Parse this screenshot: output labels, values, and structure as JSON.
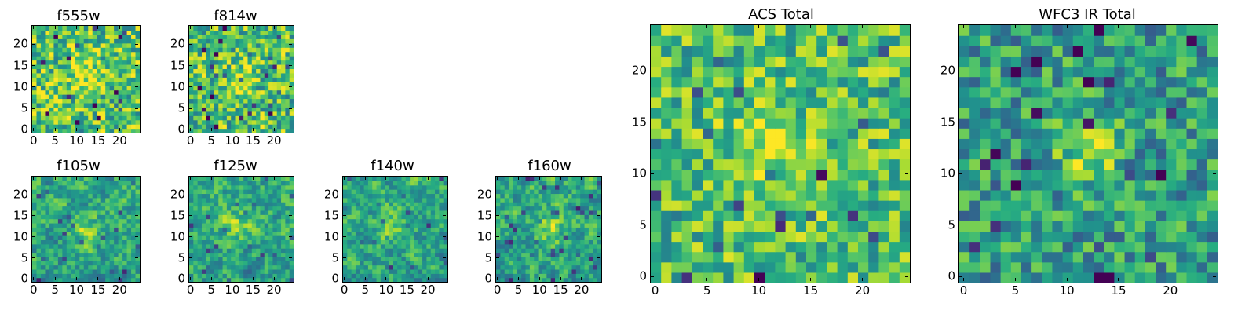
{
  "chart_data": [
    {
      "type": "heatmap",
      "title": "f555w",
      "seed": 11,
      "colormap": "viridis",
      "grid": [
        25,
        25
      ],
      "xlim": [
        -0.5,
        24.5
      ],
      "ylim": [
        -0.5,
        24.5
      ],
      "xticks": [
        0,
        5,
        10,
        15,
        20
      ],
      "yticks": [
        0,
        5,
        10,
        15,
        20
      ],
      "xtick_labels": [
        "0",
        "5",
        "10",
        "15",
        "20"
      ],
      "ytick_labels": [
        "0",
        "5",
        "10",
        "15",
        "20"
      ],
      "source": {
        "x": 12,
        "y": 13,
        "sigma": 2.5,
        "amp": 0.25
      },
      "background": 0.72,
      "noise": 0.3,
      "smooth": 0
    },
    {
      "type": "heatmap",
      "title": "f814w",
      "seed": 23,
      "colormap": "viridis",
      "grid": [
        25,
        25
      ],
      "xlim": [
        -0.5,
        24.5
      ],
      "ylim": [
        -0.5,
        24.5
      ],
      "xticks": [
        0,
        5,
        10,
        15,
        20
      ],
      "yticks": [
        0,
        5,
        10,
        15,
        20
      ],
      "xtick_labels": [
        "0",
        "5",
        "10",
        "15",
        "20"
      ],
      "ytick_labels": [
        "0",
        "5",
        "10",
        "15",
        "20"
      ],
      "source": {
        "x": 11,
        "y": 12,
        "sigma": 2.5,
        "amp": 0.22
      },
      "background": 0.7,
      "noise": 0.3,
      "smooth": 0
    },
    {
      "type": "heatmap",
      "title": "f105w",
      "seed": 37,
      "colormap": "viridis",
      "grid": [
        25,
        25
      ],
      "xlim": [
        -0.5,
        24.5
      ],
      "ylim": [
        -0.5,
        24.5
      ],
      "xticks": [
        0,
        5,
        10,
        15,
        20
      ],
      "yticks": [
        0,
        5,
        10,
        15,
        20
      ],
      "xtick_labels": [
        "0",
        "5",
        "10",
        "15",
        "20"
      ],
      "ytick_labels": [
        "0",
        "5",
        "10",
        "15",
        "20"
      ],
      "source": {
        "x": 12,
        "y": 11,
        "sigma": 2.5,
        "amp": 0.25
      },
      "background": 0.62,
      "noise": 0.3,
      "smooth": 1
    },
    {
      "type": "heatmap",
      "title": "f125w",
      "seed": 41,
      "colormap": "viridis",
      "grid": [
        25,
        25
      ],
      "xlim": [
        -0.5,
        24.5
      ],
      "ylim": [
        -0.5,
        24.5
      ],
      "xticks": [
        0,
        5,
        10,
        15,
        20
      ],
      "yticks": [
        0,
        5,
        10,
        15,
        20
      ],
      "xtick_labels": [
        "0",
        "5",
        "10",
        "15",
        "20"
      ],
      "ytick_labels": [
        "0",
        "5",
        "10",
        "15",
        "20"
      ],
      "source": {
        "x": 11,
        "y": 13,
        "sigma": 2.5,
        "amp": 0.22
      },
      "background": 0.62,
      "noise": 0.3,
      "smooth": 1
    },
    {
      "type": "heatmap",
      "title": "f140w",
      "seed": 53,
      "colormap": "viridis",
      "grid": [
        25,
        25
      ],
      "xlim": [
        -0.5,
        24.5
      ],
      "ylim": [
        -0.5,
        24.5
      ],
      "xticks": [
        0,
        5,
        10,
        15,
        20
      ],
      "yticks": [
        0,
        5,
        10,
        15,
        20
      ],
      "xtick_labels": [
        "0",
        "5",
        "10",
        "15",
        "20"
      ],
      "ytick_labels": [
        "0",
        "5",
        "10",
        "15",
        "20"
      ],
      "source": {
        "x": 12,
        "y": 12,
        "sigma": 2.5,
        "amp": 0.18
      },
      "background": 0.62,
      "noise": 0.3,
      "smooth": 1
    },
    {
      "type": "heatmap",
      "title": "f160w",
      "seed": 67,
      "colormap": "viridis",
      "grid": [
        25,
        25
      ],
      "xlim": [
        -0.5,
        24.5
      ],
      "ylim": [
        -0.5,
        24.5
      ],
      "xticks": [
        0,
        5,
        10,
        15,
        20
      ],
      "yticks": [
        0,
        5,
        10,
        15,
        20
      ],
      "xtick_labels": [
        "0",
        "5",
        "10",
        "15",
        "20"
      ],
      "ytick_labels": [
        "0",
        "5",
        "10",
        "15",
        "20"
      ],
      "source": {
        "x": 12,
        "y": 12,
        "sigma": 2.5,
        "amp": 0.25
      },
      "background": 0.62,
      "noise": 0.3,
      "smooth": 1
    },
    {
      "type": "heatmap",
      "title": "ACS Total",
      "seed": 79,
      "colormap": "viridis",
      "grid": [
        25,
        25
      ],
      "xlim": [
        -0.5,
        24.5
      ],
      "ylim": [
        -0.5,
        24.5
      ],
      "xticks": [
        0,
        5,
        10,
        15,
        20
      ],
      "yticks": [
        0,
        5,
        10,
        15,
        20
      ],
      "xtick_labels": [
        "0",
        "5",
        "10",
        "15",
        "20"
      ],
      "ytick_labels": [
        "0",
        "5",
        "10",
        "15",
        "20"
      ],
      "source": {
        "x": 11,
        "y": 13,
        "sigma": 2.5,
        "amp": 0.25
      },
      "background": 0.7,
      "noise": 0.26,
      "smooth": 0
    },
    {
      "type": "heatmap",
      "title": "WFC3 IR Total",
      "seed": 97,
      "colormap": "viridis",
      "grid": [
        25,
        25
      ],
      "xlim": [
        -0.5,
        24.5
      ],
      "ylim": [
        -0.5,
        24.5
      ],
      "xticks": [
        0,
        5,
        10,
        15,
        20
      ],
      "yticks": [
        0,
        5,
        10,
        15,
        20
      ],
      "xtick_labels": [
        "0",
        "5",
        "10",
        "15",
        "20"
      ],
      "ytick_labels": [
        "0",
        "5",
        "10",
        "15",
        "20"
      ],
      "source": {
        "x": 12,
        "y": 12,
        "sigma": 2.0,
        "amp": 0.35
      },
      "background": 0.55,
      "noise": 0.26,
      "smooth": 0
    }
  ]
}
